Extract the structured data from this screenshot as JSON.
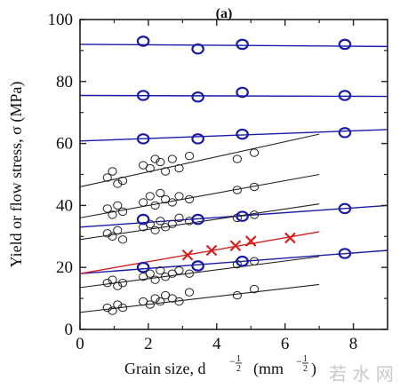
{
  "chart_data": {
    "type": "scatter",
    "panel_label": "(a)",
    "xlim": [
      0,
      9
    ],
    "ylim": [
      0,
      100
    ],
    "x_ticks": [
      0,
      2,
      4,
      6,
      8
    ],
    "y_ticks": [
      0,
      20,
      40,
      60,
      80,
      100
    ],
    "x_tick_labels": [
      "0",
      "2",
      "4",
      "6",
      "8"
    ],
    "y_tick_labels": [
      "0",
      "20",
      "40",
      "60",
      "80",
      "100"
    ],
    "xlabel_main": "Grain size, d",
    "xlabel_sup": "−",
    "xlabel_sup_num": "1",
    "xlabel_sup_den": "2",
    "xlabel_unit_open": "(mm",
    "xlabel_unit_close": ")",
    "ylabel": "Yield or flow stress, σ (MPa)",
    "watermark": "若 水 网",
    "colors": {
      "blue": "#1a1aa8",
      "black": "#222222",
      "red": "#d42020"
    },
    "fit_lines": [
      {
        "color": "blue",
        "x": [
          0,
          9
        ],
        "y": [
          92.0,
          91.3
        ]
      },
      {
        "color": "blue",
        "x": [
          0,
          9
        ],
        "y": [
          75.5,
          75.2
        ]
      },
      {
        "color": "blue",
        "x": [
          0,
          9
        ],
        "y": [
          60.8,
          64.5
        ]
      },
      {
        "color": "blue",
        "x": [
          0,
          9
        ],
        "y": [
          33.0,
          40.0
        ]
      },
      {
        "color": "blue",
        "x": [
          0,
          9
        ],
        "y": [
          18.0,
          25.5
        ]
      },
      {
        "color": "red",
        "x": [
          0,
          7
        ],
        "y": [
          18.0,
          31.5
        ]
      },
      {
        "color": "black",
        "x": [
          0,
          7
        ],
        "y": [
          46.0,
          63.0
        ]
      },
      {
        "color": "black",
        "x": [
          0,
          7
        ],
        "y": [
          36.0,
          50.0
        ]
      },
      {
        "color": "black",
        "x": [
          0,
          7
        ],
        "y": [
          29.0,
          40.5
        ]
      },
      {
        "color": "black",
        "x": [
          0,
          7
        ],
        "y": [
          13.5,
          23.5
        ]
      },
      {
        "color": "black",
        "x": [
          0,
          7
        ],
        "y": [
          5.5,
          14.5
        ]
      }
    ],
    "blue_points": {
      "x": [
        1.85,
        3.45,
        4.75,
        7.75,
        1.85,
        3.45,
        4.75,
        7.75,
        1.85,
        3.45,
        4.75,
        7.75,
        1.85,
        3.45,
        4.75,
        7.75,
        1.85,
        3.45,
        4.75,
        7.75
      ],
      "y": [
        93.0,
        90.5,
        92.0,
        92.0,
        75.5,
        75.0,
        76.5,
        75.5,
        61.5,
        61.5,
        63.0,
        63.5,
        35.5,
        35.5,
        36.5,
        39.0,
        20.0,
        20.5,
        22.0,
        24.5
      ]
    },
    "black_points": {
      "x": [
        0.8,
        0.95,
        1.1,
        1.25,
        1.85,
        2.05,
        2.2,
        2.35,
        2.5,
        2.7,
        2.9,
        3.2,
        4.6,
        5.1,
        0.8,
        0.95,
        1.1,
        1.25,
        1.85,
        2.05,
        2.2,
        2.35,
        2.5,
        2.7,
        2.9,
        3.2,
        4.6,
        5.1,
        0.8,
        0.95,
        1.1,
        1.25,
        1.85,
        2.05,
        2.2,
        2.35,
        2.5,
        2.7,
        2.9,
        3.2,
        4.6,
        5.1,
        0.8,
        0.95,
        1.1,
        1.25,
        1.85,
        2.05,
        2.2,
        2.35,
        2.5,
        2.7,
        2.9,
        3.2,
        4.6,
        5.1,
        0.8,
        0.95,
        1.1,
        1.25,
        1.85,
        2.05,
        2.2,
        2.35,
        2.5,
        2.7,
        2.9,
        3.2,
        4.6,
        5.1
      ],
      "y": [
        49,
        51,
        47,
        48,
        53,
        52,
        55,
        54,
        51,
        55,
        52,
        56,
        55,
        57,
        39,
        37,
        40,
        38,
        41,
        43,
        40,
        44,
        42,
        41,
        43,
        42,
        45,
        46,
        31,
        30,
        32,
        29,
        33,
        34,
        32,
        35,
        33,
        34,
        36,
        35,
        36,
        37,
        15,
        16,
        14,
        15,
        17,
        18,
        16,
        19,
        17,
        18,
        19,
        18,
        21,
        22,
        7,
        6,
        8,
        7,
        9,
        8,
        10,
        9,
        11,
        10,
        9,
        12,
        11,
        13
      ]
    },
    "red_points": {
      "x": [
        3.15,
        3.85,
        4.55,
        5.0,
        6.15
      ],
      "y": [
        24.0,
        25.5,
        27.0,
        28.5,
        29.5
      ]
    }
  }
}
